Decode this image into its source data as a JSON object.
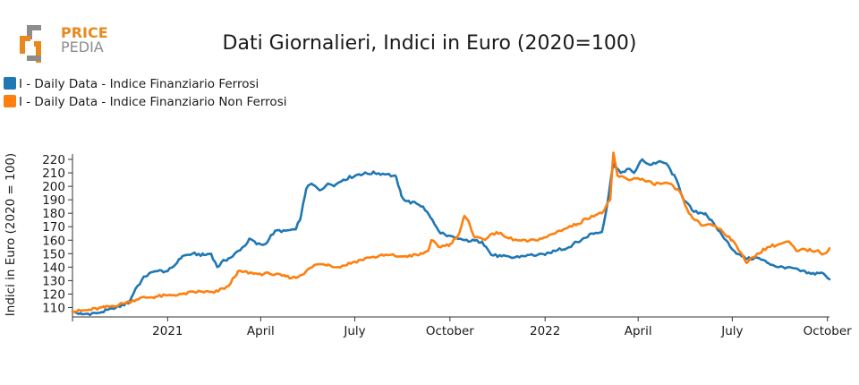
{
  "logo": {
    "line1": "PRICE",
    "line2": "PEDIA",
    "accent": "#e8891c",
    "gray": "#8c8c8c"
  },
  "chart_data": {
    "type": "line",
    "title": "Dati Giornalieri, Indici in Euro (2020=100)",
    "xlabel": "",
    "ylabel": "Indici in Euro (2020 = 100)",
    "ylim": [
      103,
      224
    ],
    "yticks": [
      110,
      120,
      130,
      140,
      150,
      160,
      170,
      180,
      190,
      200,
      210,
      220
    ],
    "xlim": [
      "2020-10-01",
      "2022-10-03"
    ],
    "xticks": [
      {
        "date": "2021-01-01",
        "label": "2021"
      },
      {
        "date": "2021-04-01",
        "label": "April"
      },
      {
        "date": "2021-07-01",
        "label": "July"
      },
      {
        "date": "2021-10-01",
        "label": "October"
      },
      {
        "date": "2022-01-01",
        "label": "2022"
      },
      {
        "date": "2022-04-01",
        "label": "April"
      },
      {
        "date": "2022-07-01",
        "label": "July"
      },
      {
        "date": "2022-10-01",
        "label": "October"
      }
    ],
    "legend_position": "top-left",
    "series": [
      {
        "name": "I - Daily Data - Indice Finanziario Ferrosi",
        "color": "#1f77b4",
        "points": [
          [
            "2020-10-01",
            107
          ],
          [
            "2020-10-10",
            105
          ],
          [
            "2020-10-25",
            106
          ],
          [
            "2020-11-10",
            109
          ],
          [
            "2020-11-25",
            114
          ],
          [
            "2020-12-01",
            124
          ],
          [
            "2020-12-10",
            133
          ],
          [
            "2020-12-20",
            137
          ],
          [
            "2021-01-01",
            137
          ],
          [
            "2021-01-10",
            143
          ],
          [
            "2021-01-15",
            148
          ],
          [
            "2021-01-25",
            150
          ],
          [
            "2021-02-05",
            149
          ],
          [
            "2021-02-12",
            150
          ],
          [
            "2021-02-18",
            140
          ],
          [
            "2021-02-25",
            145
          ],
          [
            "2021-03-05",
            148
          ],
          [
            "2021-03-10",
            152
          ],
          [
            "2021-03-15",
            155
          ],
          [
            "2021-03-22",
            161
          ],
          [
            "2021-03-28",
            157
          ],
          [
            "2021-04-05",
            157
          ],
          [
            "2021-04-15",
            167
          ],
          [
            "2021-04-25",
            167
          ],
          [
            "2021-05-05",
            168
          ],
          [
            "2021-05-10",
            178
          ],
          [
            "2021-05-15",
            198
          ],
          [
            "2021-05-20",
            202
          ],
          [
            "2021-05-28",
            197
          ],
          [
            "2021-06-05",
            202
          ],
          [
            "2021-06-12",
            201
          ],
          [
            "2021-06-20",
            205
          ],
          [
            "2021-07-05",
            209
          ],
          [
            "2021-07-20",
            210
          ],
          [
            "2021-08-01",
            209
          ],
          [
            "2021-08-10",
            207
          ],
          [
            "2021-08-15",
            193
          ],
          [
            "2021-08-20",
            189
          ],
          [
            "2021-08-30",
            187
          ],
          [
            "2021-09-05",
            185
          ],
          [
            "2021-09-12",
            177
          ],
          [
            "2021-09-20",
            167
          ],
          [
            "2021-09-28",
            163
          ],
          [
            "2021-10-05",
            162
          ],
          [
            "2021-10-15",
            160
          ],
          [
            "2021-11-01",
            159
          ],
          [
            "2021-11-05",
            155
          ],
          [
            "2021-11-10",
            149
          ],
          [
            "2021-11-20",
            148
          ],
          [
            "2021-12-01",
            147
          ],
          [
            "2021-12-15",
            149
          ],
          [
            "2022-01-01",
            149
          ],
          [
            "2022-01-15",
            154
          ],
          [
            "2022-01-20",
            153
          ],
          [
            "2022-01-28",
            157
          ],
          [
            "2022-02-05",
            160
          ],
          [
            "2022-02-15",
            165
          ],
          [
            "2022-02-25",
            166
          ],
          [
            "2022-03-02",
            186
          ],
          [
            "2022-03-08",
            217
          ],
          [
            "2022-03-15",
            210
          ],
          [
            "2022-03-22",
            213
          ],
          [
            "2022-03-28",
            210
          ],
          [
            "2022-04-05",
            220
          ],
          [
            "2022-04-12",
            216
          ],
          [
            "2022-04-20",
            218
          ],
          [
            "2022-04-28",
            217
          ],
          [
            "2022-05-08",
            205
          ],
          [
            "2022-05-15",
            190
          ],
          [
            "2022-05-25",
            181
          ],
          [
            "2022-06-05",
            180
          ],
          [
            "2022-06-15",
            170
          ],
          [
            "2022-06-25",
            160
          ],
          [
            "2022-07-05",
            150
          ],
          [
            "2022-07-10",
            148
          ],
          [
            "2022-07-15",
            146
          ],
          [
            "2022-07-25",
            147
          ],
          [
            "2022-08-05",
            143
          ],
          [
            "2022-08-15",
            140
          ],
          [
            "2022-08-25",
            140
          ],
          [
            "2022-09-05",
            137
          ],
          [
            "2022-09-15",
            135
          ],
          [
            "2022-09-25",
            136
          ],
          [
            "2022-10-03",
            131
          ]
        ]
      },
      {
        "name": "I - Daily Data - Indice Finanziario Non Ferrosi",
        "color": "#ff7f0e",
        "points": [
          [
            "2020-10-01",
            107
          ],
          [
            "2020-10-15",
            108
          ],
          [
            "2020-11-01",
            110
          ],
          [
            "2020-11-20",
            113
          ],
          [
            "2020-12-05",
            117
          ],
          [
            "2020-12-20",
            118
          ],
          [
            "2021-01-01",
            119
          ],
          [
            "2021-01-15",
            120
          ],
          [
            "2021-02-01",
            122
          ],
          [
            "2021-02-15",
            121
          ],
          [
            "2021-03-01",
            126
          ],
          [
            "2021-03-10",
            137
          ],
          [
            "2021-03-25",
            135
          ],
          [
            "2021-04-10",
            135
          ],
          [
            "2021-04-25",
            133
          ],
          [
            "2021-05-05",
            132
          ],
          [
            "2021-05-15",
            137
          ],
          [
            "2021-05-25",
            142
          ],
          [
            "2021-06-05",
            142
          ],
          [
            "2021-06-15",
            140
          ],
          [
            "2021-07-01",
            144
          ],
          [
            "2021-07-15",
            147
          ],
          [
            "2021-08-01",
            149
          ],
          [
            "2021-08-15",
            148
          ],
          [
            "2021-09-01",
            149
          ],
          [
            "2021-09-10",
            152
          ],
          [
            "2021-09-13",
            160
          ],
          [
            "2021-09-20",
            155
          ],
          [
            "2021-10-01",
            157
          ],
          [
            "2021-10-10",
            165
          ],
          [
            "2021-10-15",
            178
          ],
          [
            "2021-10-20",
            172
          ],
          [
            "2021-10-25",
            162
          ],
          [
            "2021-11-05",
            161
          ],
          [
            "2021-11-15",
            166
          ],
          [
            "2021-11-25",
            162
          ],
          [
            "2021-12-05",
            160
          ],
          [
            "2021-12-15",
            159
          ],
          [
            "2022-01-01",
            162
          ],
          [
            "2022-01-15",
            167
          ],
          [
            "2022-02-01",
            172
          ],
          [
            "2022-02-15",
            178
          ],
          [
            "2022-02-25",
            180
          ],
          [
            "2022-03-05",
            190
          ],
          [
            "2022-03-08",
            225
          ],
          [
            "2022-03-12",
            208
          ],
          [
            "2022-03-22",
            205
          ],
          [
            "2022-04-01",
            206
          ],
          [
            "2022-04-15",
            202
          ],
          [
            "2022-05-01",
            202
          ],
          [
            "2022-05-12",
            195
          ],
          [
            "2022-05-20",
            180
          ],
          [
            "2022-06-01",
            171
          ],
          [
            "2022-06-10",
            172
          ],
          [
            "2022-06-20",
            168
          ],
          [
            "2022-07-01",
            160
          ],
          [
            "2022-07-10",
            150
          ],
          [
            "2022-07-15",
            143
          ],
          [
            "2022-07-25",
            150
          ],
          [
            "2022-08-05",
            155
          ],
          [
            "2022-08-15",
            157
          ],
          [
            "2022-08-25",
            159
          ],
          [
            "2022-09-01",
            152
          ],
          [
            "2022-09-10",
            153
          ],
          [
            "2022-09-20",
            152
          ],
          [
            "2022-09-28",
            150
          ],
          [
            "2022-10-03",
            154
          ]
        ]
      }
    ]
  }
}
